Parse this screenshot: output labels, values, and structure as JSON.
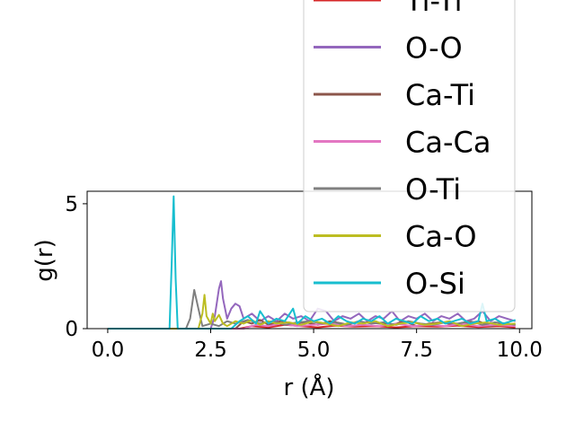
{
  "chart_data": {
    "type": "line",
    "title": "",
    "xlabel": "r (Å)",
    "ylabel": "g(r)",
    "xlim": [
      -0.5,
      10.3
    ],
    "ylim": [
      0,
      5.5
    ],
    "xticks": [
      "0.0",
      "2.5",
      "5.0",
      "7.5",
      "10.0"
    ],
    "xtick_values": [
      0,
      2.5,
      5,
      7.5,
      10
    ],
    "yticks": [
      "0",
      "5"
    ],
    "ytick_values": [
      0,
      5
    ],
    "grid": false,
    "legend_position": "top-right (partially clipped above plot)",
    "series": [
      {
        "name": "Ti-Ti",
        "color": "#d62728",
        "x": [
          0,
          3.2,
          3.5,
          3.9,
          4.3,
          4.7,
          5.1,
          5.5,
          6.0,
          6.5,
          7.0,
          7.5,
          8.0,
          8.5,
          9.0,
          9.5,
          9.9
        ],
        "y": [
          0,
          0,
          0.1,
          0.05,
          0.15,
          0.1,
          0.05,
          0.12,
          0.08,
          0.1,
          0.05,
          0.1,
          0.08,
          0.12,
          0.06,
          0.1,
          0.05
        ]
      },
      {
        "name": "O-O",
        "color": "#9467bd",
        "x": [
          0,
          2.5,
          2.6,
          2.7,
          2.75,
          2.8,
          2.9,
          3.0,
          3.1,
          3.2,
          3.3,
          3.5,
          3.7,
          3.9,
          4.1,
          4.3,
          4.5,
          4.7,
          4.9,
          5.1,
          5.3,
          5.5,
          5.7,
          5.9,
          6.1,
          6.3,
          6.5,
          6.7,
          6.9,
          7.1,
          7.3,
          7.5,
          7.7,
          7.9,
          8.1,
          8.3,
          8.5,
          8.7,
          8.9,
          9.1,
          9.3,
          9.5,
          9.7,
          9.9
        ],
        "y": [
          0,
          0,
          0.5,
          1.6,
          1.9,
          1.2,
          0.4,
          0.8,
          1.0,
          0.9,
          0.4,
          0.6,
          0.3,
          0.5,
          0.3,
          0.6,
          0.4,
          0.5,
          0.3,
          0.8,
          0.7,
          0.3,
          0.5,
          0.4,
          0.6,
          0.3,
          0.5,
          0.4,
          0.7,
          0.3,
          0.5,
          0.4,
          0.6,
          0.3,
          0.5,
          0.4,
          0.6,
          0.3,
          0.4,
          0.7,
          0.3,
          0.5,
          0.4,
          0.3
        ]
      },
      {
        "name": "Ca-Ti",
        "color": "#8c564b",
        "x": [
          0,
          3.1,
          3.3,
          3.5,
          3.7,
          3.9,
          4.2,
          4.5,
          4.8,
          5.1,
          5.4,
          5.7,
          6.0,
          6.3,
          6.6,
          6.9,
          7.2,
          7.5,
          7.8,
          8.1,
          8.4,
          8.7,
          9.0,
          9.3,
          9.6,
          9.9
        ],
        "y": [
          0,
          0,
          0.3,
          0.2,
          0.35,
          0.15,
          0.3,
          0.2,
          0.25,
          0.15,
          0.3,
          0.2,
          0.1,
          0.25,
          0.2,
          0.15,
          0.3,
          0.1,
          0.2,
          0.25,
          0.15,
          0.2,
          0.3,
          0.1,
          0.2,
          0.15
        ]
      },
      {
        "name": "Ca-Ca",
        "color": "#e377c2",
        "x": [
          0,
          3.3,
          3.6,
          3.9,
          4.2,
          4.6,
          5.0,
          5.4,
          5.8,
          6.2,
          6.6,
          7.0,
          7.4,
          7.8,
          8.2,
          8.6,
          9.0,
          9.4,
          9.9
        ],
        "y": [
          0,
          0,
          0.15,
          0.1,
          0.2,
          0.1,
          0.15,
          0.2,
          0.1,
          0.15,
          0.1,
          0.2,
          0.1,
          0.15,
          0.1,
          0.2,
          0.1,
          0.15,
          0.1
        ]
      },
      {
        "name": "O-Ti",
        "color": "#7f7f7f",
        "x": [
          0,
          1.9,
          2.0,
          2.1,
          2.2,
          2.3,
          2.5,
          2.7,
          2.9,
          3.1,
          3.4,
          3.7,
          4.0,
          4.3,
          4.6,
          4.9,
          5.2,
          5.5,
          5.8,
          6.1,
          6.4,
          6.7,
          7.0,
          7.3,
          7.6,
          7.9,
          8.2,
          8.5,
          8.8,
          9.1,
          9.4,
          9.7,
          9.9
        ],
        "y": [
          0,
          0,
          0.4,
          1.55,
          0.8,
          0.1,
          0.2,
          0.1,
          0.3,
          0.2,
          0.35,
          0.2,
          0.3,
          0.15,
          0.25,
          0.3,
          0.2,
          0.25,
          0.15,
          0.3,
          0.2,
          0.25,
          0.15,
          0.3,
          0.2,
          0.15,
          0.25,
          0.2,
          0.3,
          0.15,
          0.25,
          0.2,
          0.15
        ]
      },
      {
        "name": "Ca-O",
        "color": "#bcbd22",
        "x": [
          0,
          2.2,
          2.3,
          2.35,
          2.4,
          2.5,
          2.55,
          2.6,
          2.7,
          2.8,
          2.9,
          3.1,
          3.3,
          3.5,
          3.7,
          3.9,
          4.1,
          4.4,
          4.7,
          5.0,
          5.3,
          5.6,
          5.9,
          6.2,
          6.5,
          6.8,
          7.1,
          7.4,
          7.7,
          8.0,
          8.3,
          8.6,
          8.9,
          9.2,
          9.5,
          9.9
        ],
        "y": [
          0,
          0,
          0.6,
          1.35,
          0.5,
          0.2,
          0.6,
          0.3,
          0.55,
          0.2,
          0.1,
          0.3,
          0.2,
          0.35,
          0.15,
          0.3,
          0.2,
          0.25,
          0.15,
          0.3,
          0.2,
          0.1,
          0.25,
          0.2,
          0.3,
          0.1,
          0.2,
          0.25,
          0.15,
          0.2,
          0.3,
          0.1,
          0.2,
          0.25,
          0.15,
          0.2
        ]
      },
      {
        "name": "O-Si",
        "color": "#17becf",
        "x": [
          0,
          1.5,
          1.55,
          1.6,
          1.65,
          1.7,
          1.8,
          3.0,
          3.2,
          3.4,
          3.6,
          3.7,
          3.9,
          4.1,
          4.3,
          4.5,
          4.6,
          4.8,
          5.0,
          5.2,
          5.4,
          5.6,
          5.8,
          6.0,
          6.2,
          6.4,
          6.6,
          6.8,
          7.0,
          7.2,
          7.4,
          7.6,
          7.8,
          8.0,
          8.2,
          8.4,
          8.6,
          8.8,
          9.0,
          9.1,
          9.2,
          9.4,
          9.6,
          9.8,
          9.9
        ],
        "y": [
          0,
          0,
          2.5,
          5.3,
          2.0,
          0,
          0,
          0,
          0.3,
          0.5,
          0.2,
          0.7,
          0.2,
          0.4,
          0.3,
          0.8,
          0.2,
          0.5,
          0.3,
          0.4,
          0.2,
          0.5,
          0.3,
          0.2,
          0.4,
          0.3,
          0.5,
          0.2,
          0.4,
          0.3,
          0.2,
          0.5,
          0.3,
          0.4,
          0.2,
          0.3,
          0.4,
          0.2,
          0.3,
          1.0,
          0.3,
          0.4,
          0.2,
          0.3,
          0.35
        ]
      }
    ]
  }
}
